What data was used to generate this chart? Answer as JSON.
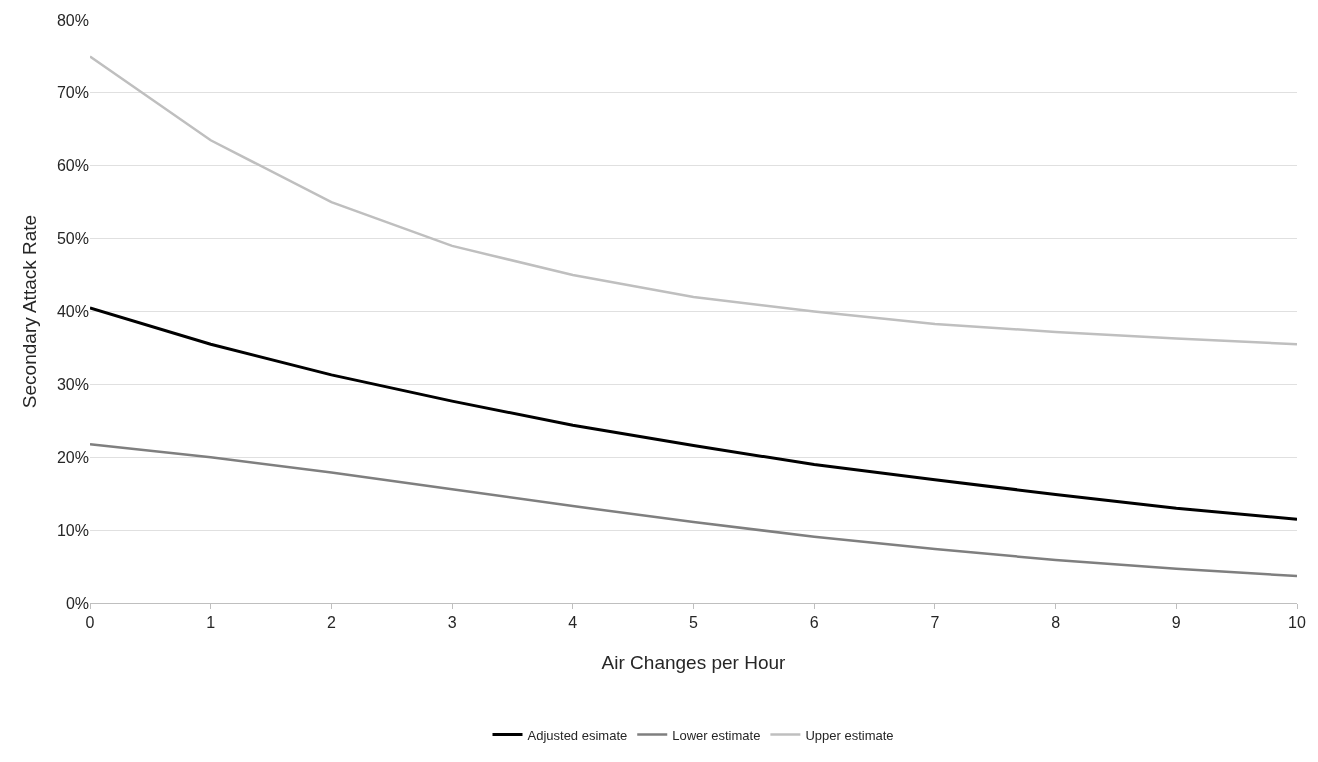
{
  "chart_data": {
    "type": "line",
    "xlabel": "Air Changes per Hour",
    "ylabel": "Secondary Attack Rate",
    "x": [
      0,
      1,
      2,
      3,
      4,
      5,
      6,
      7,
      8,
      9,
      10
    ],
    "series": [
      {
        "name": "Adjusted esimate",
        "color": "#000000",
        "values": [
          40.5,
          35.5,
          31.3,
          27.7,
          24.4,
          21.6,
          19,
          16.9,
          14.9,
          13,
          11.5
        ]
      },
      {
        "name": "Lower estimate",
        "color": "#7f7f7f",
        "values": [
          21.8,
          20,
          17.9,
          15.6,
          13.3,
          11.1,
          9.1,
          7.4,
          5.9,
          4.7,
          3.7
        ]
      },
      {
        "name": "Upper estimate",
        "color": "#bfbfbf",
        "values": [
          75,
          63.5,
          55,
          49,
          45,
          42,
          40,
          38.3,
          37.2,
          36.3,
          35.5
        ]
      }
    ],
    "xlim": [
      0,
      10
    ],
    "xticks": [
      0,
      1,
      2,
      3,
      4,
      5,
      6,
      7,
      8,
      9,
      10
    ],
    "ylim": [
      0,
      80
    ],
    "yticks": [
      {
        "value": 0,
        "label": "0%"
      },
      {
        "value": 10,
        "label": "10%"
      },
      {
        "value": 20,
        "label": "20%"
      },
      {
        "value": 30,
        "label": "30%"
      },
      {
        "value": 40,
        "label": "40%"
      },
      {
        "value": 50,
        "label": "50%"
      },
      {
        "value": 60,
        "label": "60%"
      },
      {
        "value": 70,
        "label": "70%"
      },
      {
        "value": 80,
        "label": "80%"
      }
    ],
    "grid": "y",
    "legend": "bottom",
    "marker": "none",
    "line_style": "solid"
  }
}
